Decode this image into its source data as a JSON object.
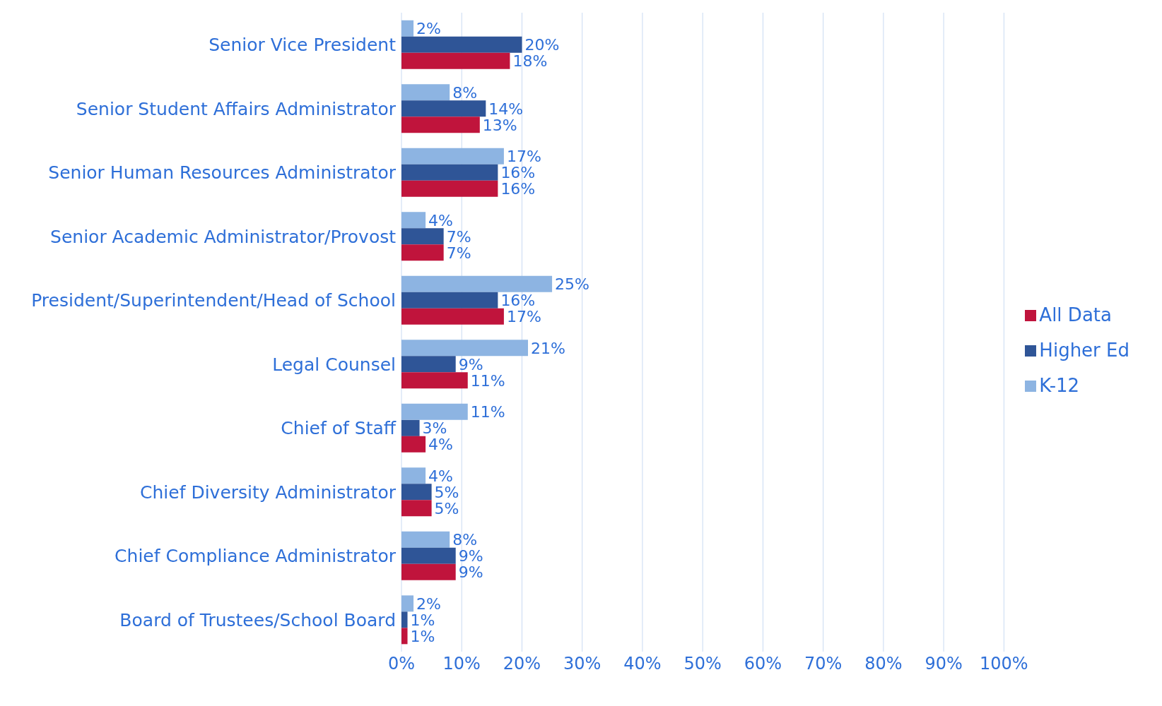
{
  "chart_data": {
    "type": "bar",
    "orientation": "horizontal",
    "categories": [
      "Senior Vice President",
      "Senior Student Affairs Administrator",
      "Senior Human Resources Administrator",
      "Senior Academic Administrator/Provost",
      "President/Superintendent/Head of School",
      "Legal Counsel",
      "Chief of Staff",
      "Chief Diversity Administrator",
      "Chief Compliance Administrator",
      "Board of Trustees/School Board"
    ],
    "series": [
      {
        "name": "K-12",
        "color": "#8db4e2",
        "values": [
          2,
          8,
          17,
          4,
          25,
          21,
          11,
          4,
          8,
          2
        ],
        "value_labels": [
          "2%",
          "8%",
          "17%",
          "4%",
          "25%",
          "21%",
          "11%",
          "4%",
          "8%",
          "2%"
        ]
      },
      {
        "name": "Higher Ed",
        "color": "#2f5597",
        "values": [
          20,
          14,
          16,
          7,
          16,
          9,
          3,
          5,
          9,
          1
        ],
        "value_labels": [
          "20%",
          "14%",
          "16%",
          "7%",
          "16%",
          "9%",
          "3%",
          "5%",
          "9%",
          "1%"
        ]
      },
      {
        "name": "All Data",
        "color": "#c0143c",
        "values": [
          18,
          13,
          16,
          7,
          17,
          11,
          4,
          5,
          9,
          1
        ],
        "value_labels": [
          "18%",
          "13%",
          "16%",
          "7%",
          "17%",
          "11%",
          "4%",
          "5%",
          "9%",
          "1%"
        ]
      }
    ],
    "xlim": [
      0,
      100
    ],
    "xticks": [
      {
        "value": 0,
        "label": "0%"
      },
      {
        "value": 10,
        "label": "10%"
      },
      {
        "value": 20,
        "label": "20%"
      },
      {
        "value": 30,
        "label": "30%"
      },
      {
        "value": 40,
        "label": "40%"
      },
      {
        "value": 50,
        "label": "50%"
      },
      {
        "value": 60,
        "label": "60%"
      },
      {
        "value": 70,
        "label": "70%"
      },
      {
        "value": 80,
        "label": "80%"
      },
      {
        "value": 90,
        "label": "90%"
      },
      {
        "value": 100,
        "label": "100%"
      }
    ],
    "grid": "x",
    "legend": "right"
  }
}
